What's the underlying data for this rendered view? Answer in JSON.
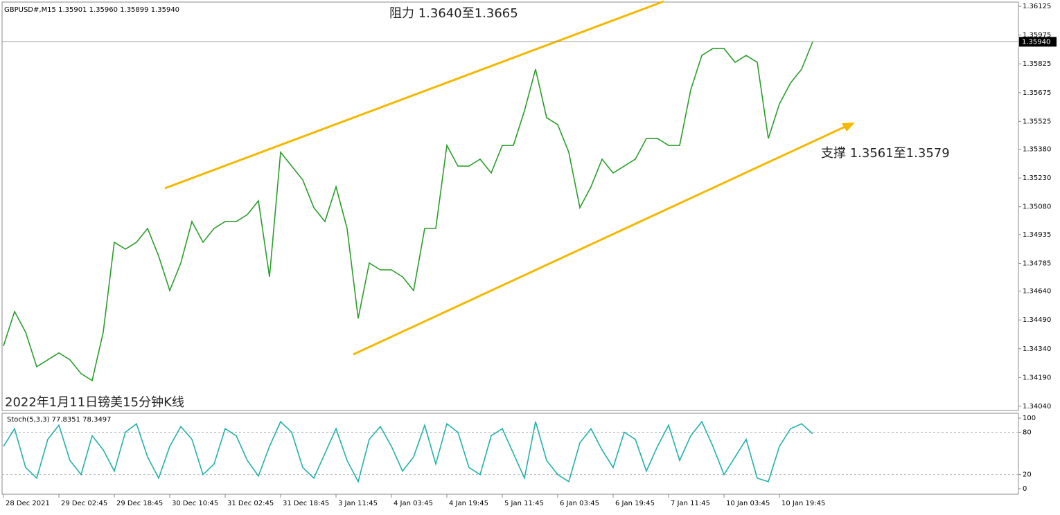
{
  "chart_data": [
    {
      "type": "line",
      "title": "GBPUSD#,M15  1.35901 1.35960 1.35899 1.35940",
      "annotations": [
        "阻力 1.3640至1.3665",
        "支撑 1.3561至1.3579",
        "2022年1月11日镑美15分钟K线"
      ],
      "categories": [
        "28 Dec 2021",
        null,
        null,
        null,
        null,
        "29 Dec 02:45",
        null,
        null,
        null,
        null,
        "29 Dec 18:45",
        null,
        null,
        null,
        null,
        "30 Dec 10:45",
        null,
        null,
        null,
        null,
        "31 Dec 02:45",
        null,
        null,
        null,
        null,
        "31 Dec 18:45",
        null,
        null,
        null,
        null,
        "3 Jan 11:45",
        null,
        null,
        null,
        null,
        "4 Jan 03:45",
        null,
        null,
        null,
        null,
        "4 Jan 19:45",
        null,
        null,
        null,
        null,
        "5 Jan 11:45",
        null,
        null,
        null,
        null,
        "6 Jan 03:45",
        null,
        null,
        null,
        null,
        "6 Jan 19:45",
        null,
        null,
        null,
        null,
        "7 Jan 11:45",
        null,
        null,
        null,
        null,
        "10 Jan 03:45",
        null,
        null,
        null,
        null,
        "10 Jan 19:45",
        null,
        null,
        null
      ],
      "values": [
        1.34354,
        1.34534,
        1.34426,
        1.34246,
        1.34282,
        1.34318,
        1.34282,
        1.3421,
        1.34174,
        1.34426,
        1.34895,
        1.34859,
        1.34895,
        1.34967,
        1.34823,
        1.34643,
        1.34787,
        1.35003,
        1.34895,
        1.34967,
        1.35003,
        1.35003,
        1.35039,
        1.35111,
        1.34715,
        1.35364,
        1.35292,
        1.3522,
        1.35075,
        1.35003,
        1.35184,
        1.34967,
        1.34498,
        1.34787,
        1.34751,
        1.34751,
        1.34715,
        1.34643,
        1.34967,
        1.34967,
        1.354,
        1.35292,
        1.35292,
        1.35328,
        1.35256,
        1.354,
        1.354,
        1.3558,
        1.35797,
        1.35544,
        1.35508,
        1.35364,
        1.35075,
        1.35184,
        1.35328,
        1.35256,
        1.35292,
        1.35328,
        1.35436,
        1.35436,
        1.354,
        1.354,
        1.35689,
        1.35869,
        1.35905,
        1.35905,
        1.35833,
        1.35869,
        1.35833,
        1.35436,
        1.35616,
        1.35725,
        1.35797,
        1.3594
      ],
      "color": "#2a9d2a",
      "ylim": [
        1.34018,
        1.36147
      ],
      "yticks": [
        {
          "value": 1.3404,
          "label": "1.34040"
        },
        {
          "value": 1.3419,
          "label": "1.34190"
        },
        {
          "value": 1.3434,
          "label": "1.34340"
        },
        {
          "value": 1.3449,
          "label": "1.34490"
        },
        {
          "value": 1.3464,
          "label": "1.34640"
        },
        1.34785,
        1.34935,
        {
          "value": 1.3508,
          "label": "1.35080"
        },
        {
          "value": 1.3523,
          "label": "1.35230"
        },
        {
          "value": 1.3538,
          "label": "1.35380"
        },
        1.35525,
        1.35675,
        1.35825,
        1.35975,
        1.36125
      ],
      "last_price": {
        "value": 1.3594,
        "label": "1.35940"
      }
    },
    {
      "type": "line",
      "title": "Stoch(5,3,3) 77.8351 78.3497",
      "values": [
        60,
        85,
        30,
        15,
        70,
        90,
        40,
        20,
        75,
        55,
        25,
        80,
        92,
        45,
        15,
        60,
        88,
        70,
        20,
        35,
        85,
        75,
        40,
        18,
        60,
        95,
        80,
        30,
        15,
        50,
        85,
        40,
        10,
        70,
        88,
        60,
        25,
        45,
        90,
        35,
        92,
        80,
        30,
        20,
        75,
        85,
        50,
        15,
        95,
        40,
        20,
        10,
        65,
        85,
        55,
        30,
        80,
        70,
        25,
        60,
        90,
        40,
        75,
        95,
        60,
        20,
        45,
        70,
        15,
        10,
        60,
        85,
        92,
        77.8351
      ],
      "color": "#20b2aa",
      "ylim": [
        -7.8,
        106.9
      ],
      "yticks": [
        0,
        20,
        80,
        100
      ],
      "levels": [
        20,
        80
      ]
    }
  ]
}
